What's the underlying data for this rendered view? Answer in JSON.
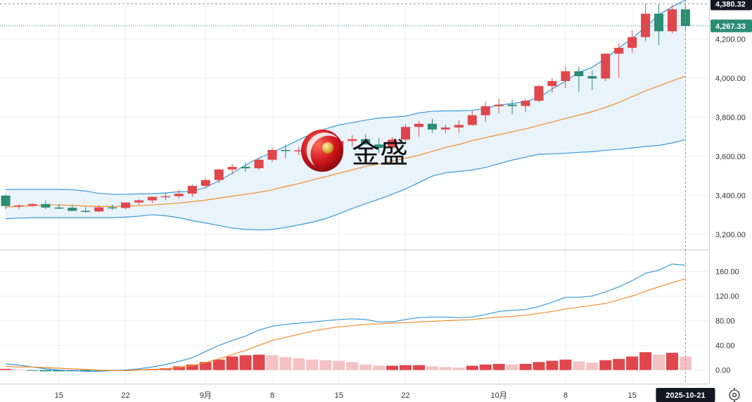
{
  "chart_data": [
    {
      "type": "candlestick",
      "panel": "price",
      "x": [
        "2025-08-11",
        "2025-08-12",
        "2025-08-13",
        "2025-08-14",
        "2025-08-15",
        "2025-08-18",
        "2025-08-19",
        "2025-08-20",
        "2025-08-21",
        "2025-08-22",
        "2025-08-25",
        "2025-08-26",
        "2025-08-27",
        "2025-08-28",
        "2025-08-29",
        "2025-09-01",
        "2025-09-02",
        "2025-09-03",
        "2025-09-04",
        "2025-09-05",
        "2025-09-08",
        "2025-09-09",
        "2025-09-10",
        "2025-09-11",
        "2025-09-12",
        "2025-09-15",
        "2025-09-16",
        "2025-09-17",
        "2025-09-18",
        "2025-09-19",
        "2025-09-22",
        "2025-09-23",
        "2025-09-24",
        "2025-09-25",
        "2025-09-26",
        "2025-09-29",
        "2025-09-30",
        "2025-10-01",
        "2025-10-02",
        "2025-10-03",
        "2025-10-06",
        "2025-10-07",
        "2025-10-08",
        "2025-10-09",
        "2025-10-10",
        "2025-10-13",
        "2025-10-14",
        "2025-10-15",
        "2025-10-16",
        "2025-10-17",
        "2025-10-20",
        "2025-10-21"
      ],
      "open": [
        3398,
        3345,
        3348,
        3355,
        3337,
        3336,
        3320,
        3317,
        3338,
        3335,
        3363,
        3374,
        3392,
        3395,
        3408,
        3448,
        3478,
        3532,
        3545,
        3538,
        3582,
        3632,
        3627,
        3630,
        3642,
        3640,
        3678,
        3687,
        3660,
        3643,
        3685,
        3750,
        3766,
        3737,
        3747,
        3760,
        3810,
        3856,
        3864,
        3857,
        3884,
        3959,
        3985,
        4035,
        4010,
        3998,
        4125,
        4155,
        4210,
        4330,
        4240,
        4352
      ],
      "high": [
        3405,
        3355,
        3359,
        3373,
        3355,
        3351,
        3339,
        3349,
        3351,
        3360,
        3379,
        3393,
        3413,
        3428,
        3455,
        3488,
        3534,
        3560,
        3568,
        3590,
        3643,
        3662,
        3648,
        3658,
        3669,
        3692,
        3708,
        3713,
        3692,
        3698,
        3765,
        3781,
        3791,
        3761,
        3785,
        3833,
        3880,
        3893,
        3890,
        3895,
        3965,
        4000,
        4060,
        4060,
        4040,
        4115,
        4178,
        4245,
        4380,
        4380,
        4375,
        4380
      ],
      "low": [
        3330,
        3330,
        3340,
        3330,
        3329,
        3320,
        3310,
        3315,
        3325,
        3328,
        3351,
        3360,
        3375,
        3383,
        3390,
        3435,
        3463,
        3505,
        3520,
        3528,
        3571,
        3590,
        3605,
        3607,
        3625,
        3627,
        3650,
        3660,
        3615,
        3615,
        3675,
        3700,
        3720,
        3717,
        3720,
        3755,
        3776,
        3820,
        3815,
        3825,
        3875,
        3925,
        3950,
        3930,
        3940,
        3985,
        4000,
        4130,
        4190,
        4170,
        4230,
        4250
      ],
      "close": [
        3345,
        3348,
        3355,
        3337,
        3336,
        3320,
        3317,
        3338,
        3335,
        3363,
        3374,
        3392,
        3395,
        3408,
        3448,
        3478,
        3532,
        3545,
        3538,
        3582,
        3632,
        3627,
        3630,
        3642,
        3640,
        3678,
        3687,
        3660,
        3643,
        3685,
        3750,
        3766,
        3737,
        3747,
        3760,
        3810,
        3856,
        3864,
        3857,
        3884,
        3959,
        3985,
        4035,
        4010,
        3998,
        4125,
        4155,
        4210,
        4330,
        4240,
        4352,
        4267
      ],
      "bands": {
        "upper": [
          3430,
          3430,
          3430,
          3430,
          3430,
          3428,
          3422,
          3410,
          3405,
          3405,
          3407,
          3408,
          3412,
          3418,
          3420,
          3440,
          3475,
          3513,
          3555,
          3590,
          3620,
          3650,
          3685,
          3715,
          3740,
          3760,
          3772,
          3785,
          3795,
          3800,
          3805,
          3822,
          3830,
          3832,
          3832,
          3835,
          3845,
          3862,
          3870,
          3880,
          3900,
          3945,
          3985,
          4030,
          4055,
          4100,
          4155,
          4205,
          4260,
          4325,
          4365,
          4400
        ],
        "middle": [
          3340,
          3343,
          3346,
          3350,
          3350,
          3348,
          3345,
          3342,
          3343,
          3344,
          3347,
          3350,
          3355,
          3360,
          3367,
          3375,
          3385,
          3395,
          3405,
          3415,
          3428,
          3445,
          3460,
          3478,
          3495,
          3513,
          3530,
          3548,
          3560,
          3575,
          3590,
          3605,
          3625,
          3645,
          3660,
          3680,
          3695,
          3710,
          3725,
          3740,
          3758,
          3775,
          3793,
          3810,
          3828,
          3850,
          3875,
          3905,
          3935,
          3960,
          3985,
          4010
        ],
        "lower": [
          3280,
          3283,
          3285,
          3285,
          3285,
          3285,
          3285,
          3285,
          3285,
          3288,
          3293,
          3300,
          3295,
          3285,
          3270,
          3258,
          3245,
          3232,
          3225,
          3222,
          3225,
          3235,
          3248,
          3262,
          3280,
          3305,
          3332,
          3357,
          3380,
          3405,
          3432,
          3465,
          3498,
          3515,
          3522,
          3530,
          3542,
          3562,
          3580,
          3595,
          3610,
          3612,
          3615,
          3620,
          3623,
          3630,
          3635,
          3642,
          3650,
          3655,
          3668,
          3685
        ]
      },
      "last_value": "4,267.33",
      "crosshair_value": "4,380.32",
      "ylim": [
        3120,
        4400
      ],
      "yticks": [
        "3,200.00",
        "3,400.00",
        "3,600.00",
        "3,800.00",
        "4,000.00",
        "4,200.00"
      ]
    },
    {
      "type": "bar+line",
      "panel": "indicator",
      "x": [
        "2025-08-11",
        "2025-08-12",
        "2025-08-13",
        "2025-08-14",
        "2025-08-15",
        "2025-08-18",
        "2025-08-19",
        "2025-08-20",
        "2025-08-21",
        "2025-08-22",
        "2025-08-25",
        "2025-08-26",
        "2025-08-27",
        "2025-08-28",
        "2025-08-29",
        "2025-09-01",
        "2025-09-02",
        "2025-09-03",
        "2025-09-04",
        "2025-09-05",
        "2025-09-08",
        "2025-09-09",
        "2025-09-10",
        "2025-09-11",
        "2025-09-12",
        "2025-09-15",
        "2025-09-16",
        "2025-09-17",
        "2025-09-18",
        "2025-09-19",
        "2025-09-22",
        "2025-09-23",
        "2025-09-24",
        "2025-09-25",
        "2025-09-26",
        "2025-09-29",
        "2025-09-30",
        "2025-10-01",
        "2025-10-02",
        "2025-10-03",
        "2025-10-06",
        "2025-10-07",
        "2025-10-08",
        "2025-10-09",
        "2025-10-10",
        "2025-10-13",
        "2025-10-14",
        "2025-10-15",
        "2025-10-16",
        "2025-10-17",
        "2025-10-20",
        "2025-10-21"
      ],
      "histogram": [
        2,
        1,
        -1,
        -2,
        -2,
        -2,
        -2,
        -1,
        0,
        0,
        1,
        2,
        3,
        6,
        9,
        13,
        17,
        22,
        24,
        25,
        24,
        21,
        19,
        17,
        16,
        15,
        13,
        9,
        7,
        7,
        8,
        8,
        6,
        5,
        4,
        7,
        9,
        10,
        9,
        10,
        13,
        15,
        17,
        14,
        12,
        16,
        18,
        22,
        29,
        25,
        28,
        22
      ],
      "line_fast": [
        10,
        8,
        5,
        2,
        0,
        -1,
        -2,
        -2,
        -1,
        0,
        2,
        5,
        9,
        14,
        20,
        30,
        40,
        48,
        55,
        65,
        71,
        74,
        76,
        78,
        80,
        82,
        83,
        82,
        78,
        78,
        82,
        85,
        86,
        86,
        85,
        86,
        90,
        95,
        97,
        98,
        103,
        110,
        118,
        118,
        120,
        127,
        135,
        145,
        157,
        162,
        172,
        170
      ],
      "line_slow": [
        6,
        5,
        5,
        4,
        3,
        2,
        1,
        0,
        -1,
        -1,
        0,
        1,
        2,
        4,
        7,
        12,
        18,
        25,
        32,
        40,
        48,
        53,
        58,
        63,
        67,
        70,
        72,
        74,
        75,
        76,
        77,
        78,
        79,
        80,
        81,
        82,
        84,
        86,
        87,
        89,
        92,
        95,
        99,
        102,
        105,
        108,
        114,
        120,
        128,
        135,
        142,
        148
      ],
      "ylim": [
        -5,
        180
      ],
      "yticks": [
        "0.00",
        "40.00",
        "80.00",
        "120.00",
        "160.00"
      ]
    }
  ],
  "x_axis": {
    "labels": [
      "15",
      "22",
      "9月",
      "8",
      "15",
      "22",
      "10月",
      "8",
      "15"
    ],
    "label_dates": [
      "2025-08-15",
      "2025-08-22",
      "2025-09-01",
      "2025-09-08",
      "2025-09-15",
      "2025-09-22",
      "2025-10-01",
      "2025-10-08",
      "2025-10-15"
    ],
    "crosshair_date": "2025-10-21"
  },
  "logo": {
    "text": "金盛"
  },
  "colors": {
    "up": "#e0474c",
    "down": "#2a8c73",
    "band_line": "#3a9ad9",
    "band_fill": "#e9f3fb",
    "middle_line": "#f08c2c",
    "hist_strong": "#e0474c",
    "hist_light": "#f4c2c4",
    "badge_dark": "#131722",
    "badge_green": "#2a8c73"
  },
  "icons": {
    "settings": "gear-icon"
  }
}
